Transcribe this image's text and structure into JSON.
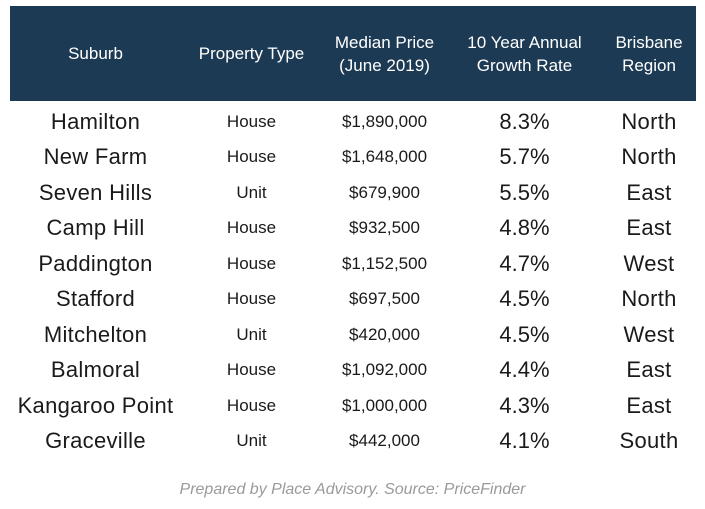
{
  "table": {
    "headers": {
      "suburb": "Suburb",
      "property_type": "Property Type",
      "median_price": "Median Price\n(June 2019)",
      "growth_rate": "10 Year  Annual\nGrowth Rate",
      "region": "Brisbane\nRegion"
    },
    "rows": [
      {
        "suburb": "Hamilton",
        "property_type": "House",
        "median_price": "$1,890,000",
        "growth_rate": "8.3%",
        "region": "North"
      },
      {
        "suburb": "New Farm",
        "property_type": "House",
        "median_price": "$1,648,000",
        "growth_rate": "5.7%",
        "region": "North"
      },
      {
        "suburb": "Seven Hills",
        "property_type": "Unit",
        "median_price": "$679,900",
        "growth_rate": "5.5%",
        "region": "East"
      },
      {
        "suburb": "Camp Hill",
        "property_type": "House",
        "median_price": "$932,500",
        "growth_rate": "4.8%",
        "region": "East"
      },
      {
        "suburb": "Paddington",
        "property_type": "House",
        "median_price": "$1,152,500",
        "growth_rate": "4.7%",
        "region": "West"
      },
      {
        "suburb": "Stafford",
        "property_type": "House",
        "median_price": "$697,500",
        "growth_rate": "4.5%",
        "region": "North"
      },
      {
        "suburb": "Mitchelton",
        "property_type": "Unit",
        "median_price": "$420,000",
        "growth_rate": "4.5%",
        "region": "West"
      },
      {
        "suburb": "Balmoral",
        "property_type": "House",
        "median_price": "$1,092,000",
        "growth_rate": "4.4%",
        "region": "East"
      },
      {
        "suburb": "Kangaroo Point",
        "property_type": "House",
        "median_price": "$1,000,000",
        "growth_rate": "4.3%",
        "region": "East"
      },
      {
        "suburb": "Graceville",
        "property_type": "Unit",
        "median_price": "$442,000",
        "growth_rate": "4.1%",
        "region": "South"
      }
    ]
  },
  "footer": "Prepared by Place Advisory. Source: PriceFinder",
  "colors": {
    "header_background": "#1d3a54",
    "header_text": "#ffffff",
    "footer_text": "#9a9a9a"
  }
}
